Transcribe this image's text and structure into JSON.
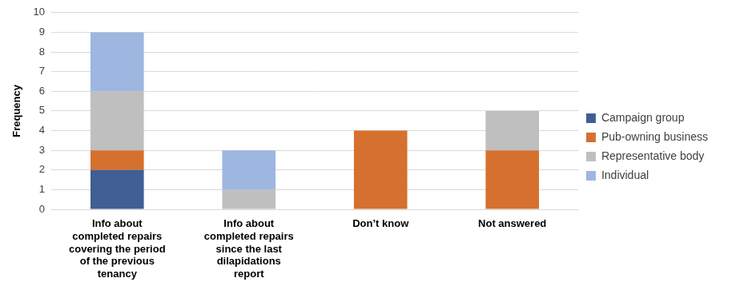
{
  "chart_data": {
    "type": "bar",
    "categories": [
      "Info about completed repairs covering the period of the previous tenancy",
      "Info about completed repairs since the last dilapidations report",
      "Don’t know",
      "Not answered"
    ],
    "series": [
      {
        "name": "Campaign group",
        "color": "#3f5f95",
        "values": [
          2,
          0,
          0,
          0
        ]
      },
      {
        "name": "Pub-owning business",
        "color": "#d5702e",
        "values": [
          1,
          0,
          4,
          3
        ]
      },
      {
        "name": "Representative body",
        "color": "#bfbfbf",
        "values": [
          3,
          1,
          0,
          2
        ]
      },
      {
        "name": "Individual",
        "color": "#9db7e0",
        "values": [
          3,
          2,
          0,
          0
        ]
      }
    ],
    "y_label": "Frequency",
    "ylim": [
      0,
      10
    ],
    "yticks": [
      0,
      1,
      2,
      3,
      4,
      5,
      6,
      7,
      8,
      9,
      10
    ],
    "stacked": true,
    "grid": true,
    "legend": "right"
  }
}
